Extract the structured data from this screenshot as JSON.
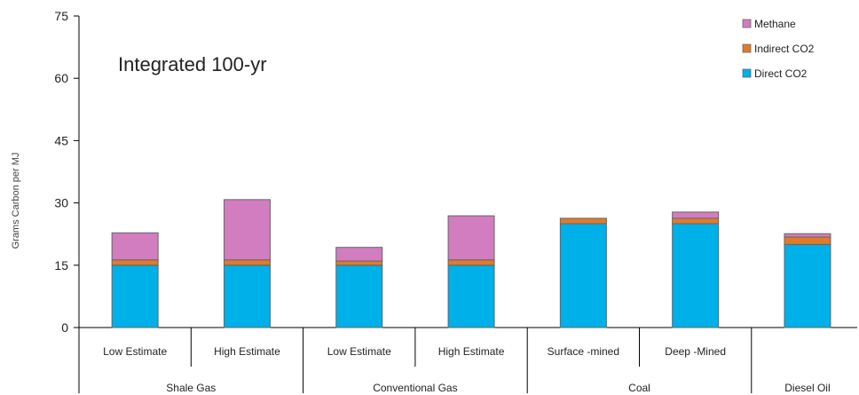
{
  "chart_data": {
    "type": "bar",
    "stacked": true,
    "annotation": "Integrated 100-yr",
    "ylabel": "Grams Carbon per MJ",
    "xlabel": "",
    "ylim": [
      0,
      75
    ],
    "yticks": [
      0,
      15,
      30,
      45,
      60,
      75
    ],
    "categories": [
      "Low Estimate",
      "High Estimate",
      "Low Estimate",
      "High Estimate",
      "Surface -mined",
      "Deep -Mined",
      ""
    ],
    "groups": [
      {
        "label": "Shale Gas",
        "span": [
          0,
          1
        ]
      },
      {
        "label": "Conventional Gas",
        "span": [
          2,
          3
        ]
      },
      {
        "label": "Coal",
        "span": [
          4,
          5
        ]
      },
      {
        "label": "Diesel Oil",
        "span": [
          6,
          6
        ]
      }
    ],
    "series": [
      {
        "name": "Direct CO2",
        "color": "#00B0E8",
        "values": [
          15,
          15,
          15,
          15,
          25,
          25,
          20
        ]
      },
      {
        "name": "Indirect CO2",
        "color": "#E07B2A",
        "values": [
          1.3,
          1.3,
          1,
          1.3,
          1.3,
          1.3,
          1.8
        ]
      },
      {
        "name": "Methane",
        "color": "#D17DBF",
        "values": [
          6.5,
          14.5,
          3.3,
          10.6,
          0,
          1.5,
          0.8
        ]
      }
    ],
    "legend": {
      "position": "top-right",
      "entries": [
        "Methane",
        "Indirect CO2",
        "Direct CO2"
      ]
    }
  }
}
